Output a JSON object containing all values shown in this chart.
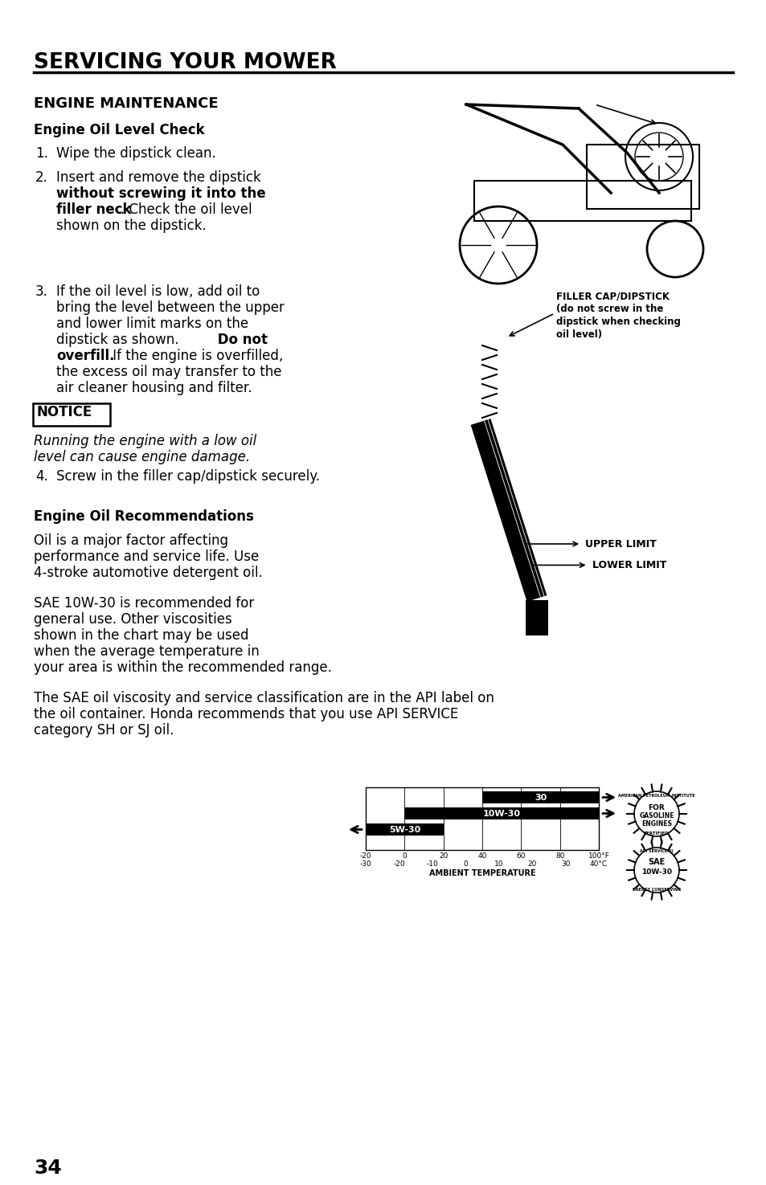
{
  "title": "SERVICING YOUR MOWER",
  "section1": "ENGINE MAINTENANCE",
  "subsection1": "Engine Oil Level Check",
  "step1": "Wipe the dipstick clean.",
  "step2_l1": "Insert and remove the dipstick",
  "step2_bold1": "without screwing it into the",
  "step2_bold2": "filler neck",
  "step2_end": ". Check the oil level",
  "step2_end2": "shown on the dipstick.",
  "step3_l1": "If the oil level is low, add oil to",
  "step3_l2": "bring the level between the upper",
  "step3_l3": "and lower limit marks on the",
  "step3_l4": "dipstick as shown.",
  "step3_bold1": "Do not",
  "step3_bold2": "overfill.",
  "step3_end1": " If the engine is overfilled,",
  "step3_end2": "the excess oil may transfer to the",
  "step3_end3": "air cleaner housing and filter.",
  "notice_title": "NOTICE",
  "notice_text1": "Running the engine with a low oil",
  "notice_text2": "level can cause engine damage.",
  "step4": "Screw in the filler cap/dipstick securely.",
  "filler_label1": "FILLER CAP/DIPSTICK",
  "filler_label2": "(do not screw in the",
  "filler_label3": "dipstick when checking",
  "filler_label4": "oil level)",
  "upper_limit": "UPPER LIMIT",
  "lower_limit": "LOWER LIMIT",
  "subsection2": "Engine Oil Recommendations",
  "oil_para1_l1": "Oil is a major factor affecting",
  "oil_para1_l2": "performance and service life. Use",
  "oil_para1_l3": "4-stroke automotive detergent oil.",
  "oil_para2_l1": "SAE 10W-30 is recommended for",
  "oil_para2_l2": "general use. Other viscosities",
  "oil_para2_l3": "shown in the chart may be used",
  "oil_para2_l4": "when the average temperature in",
  "oil_para2_l5": "your area is within the recommended range.",
  "oil_para3_l1": "The SAE oil viscosity and service classification are in the API label on",
  "oil_para3_l2": "the oil container. Honda recommends that you use API SERVICE",
  "oil_para3_l3": "category SH or SJ oil.",
  "ambient_temp": "AMBIENT TEMPERATURE",
  "f_labels": [
    "-20",
    "0",
    "20",
    "40",
    "60",
    "80",
    "100°F"
  ],
  "c_labels": [
    "-30",
    "-20",
    "-10",
    "0",
    "10",
    "20",
    "30",
    "40°C"
  ],
  "oil_30": "30",
  "oil_10w30": "10W-30",
  "oil_5w30": "5W-30",
  "page_num": "34"
}
